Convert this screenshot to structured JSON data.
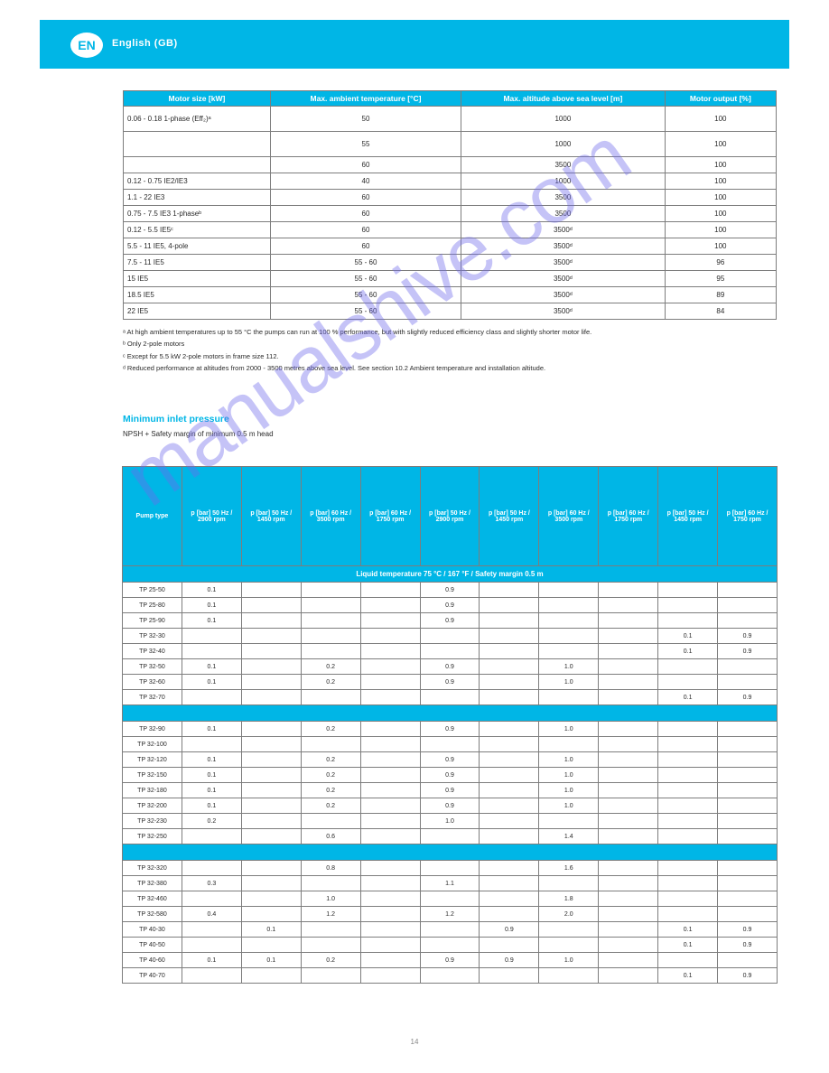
{
  "header": {
    "page_badge": "EN",
    "title": "English (GB)"
  },
  "table1": {
    "headers": [
      "Motor size [kW]",
      "Max. ambient temperature [°C]",
      "Max. altitude above sea level [m]",
      "Motor output [%]"
    ],
    "rows": [
      [
        "0.06 - 0.18 1-phase (Eff₂)ᵃ",
        "50",
        "1000",
        "100"
      ],
      [
        "",
        "55",
        "1000",
        "100"
      ],
      [
        "",
        "60",
        "3500",
        "100"
      ],
      [
        "0.12 - 0.75 IE2/IE3",
        "40",
        "1000",
        "100"
      ],
      [
        "1.1 - 22 IE3",
        "60",
        "3500",
        "100"
      ],
      [
        "0.75 - 7.5 IE3 1-phaseᵇ",
        "60",
        "3500",
        "100"
      ],
      [
        "0.12 - 5.5 IE5ᶜ",
        "60",
        "3500ᵈ",
        "100"
      ],
      [
        "5.5 - 11 IE5, 4-pole",
        "60",
        "3500ᵈ",
        "100"
      ],
      [
        "7.5 - 11 IE5",
        "55 - 60",
        "3500ᵈ",
        "96"
      ],
      [
        "15 IE5",
        "55 - 60",
        "3500ᵈ",
        "95"
      ],
      [
        "18.5 IE5",
        "55 - 60",
        "3500ᵈ",
        "89"
      ],
      [
        "22 IE5",
        "55 - 60",
        "3500ᵈ",
        "84"
      ]
    ]
  },
  "footnotes": [
    "ᵃ At high ambient temperatures up to 55 °C the pumps can run at 100 % performance, but with slightly reduced efficiency class and slightly shorter motor life.",
    "ᵇ Only 2-pole motors",
    "ᶜ Except for 5.5 kW 2-pole motors in frame size 112.",
    "ᵈ Reduced performance at altitudes from 2000 - 3500 metres above sea level. See section 10.2 Ambient temperature and installation altitude."
  ],
  "section": {
    "title": "Minimum inlet pressure",
    "sub": "NPSH + Safety margin of minimum 0.5 m head"
  },
  "table2": {
    "head": [
      "Pump type",
      "p [bar] 50 Hz / 2900 rpm",
      "p [bar] 50 Hz / 1450 rpm",
      "p [bar] 60 Hz / 3500 rpm",
      "p [bar] 60 Hz / 1750 rpm",
      "p [bar] 50 Hz / 2900 rpm",
      "p [bar] 50 Hz / 1450 rpm",
      "p [bar] 60 Hz / 3500 rpm",
      "p [bar] 60 Hz / 1750 rpm",
      "p [bar] 50 Hz / 1450 rpm",
      "p [bar] 60 Hz / 1750 rpm"
    ],
    "sections": [
      {
        "label": "Liquid temperature 75 °C / 167 °F / Safety margin 0.5 m",
        "rows": [
          [
            "TP 25-50",
            "0.1",
            "",
            "",
            "",
            "0.9",
            "",
            "",
            "",
            "",
            ""
          ],
          [
            "TP 25-80",
            "0.1",
            "",
            "",
            "",
            "0.9",
            "",
            "",
            "",
            "",
            ""
          ],
          [
            "TP 25-90",
            "0.1",
            "",
            "",
            "",
            "0.9",
            "",
            "",
            "",
            "",
            ""
          ],
          [
            "TP 32-30",
            "",
            "",
            "",
            "",
            "",
            "",
            "",
            "",
            "0.1",
            "0.9"
          ],
          [
            "TP 32-40",
            "",
            "",
            "",
            "",
            "",
            "",
            "",
            "",
            "0.1",
            "0.9"
          ],
          [
            "TP 32-50",
            "0.1",
            "",
            "0.2",
            "",
            "0.9",
            "",
            "1.0",
            "",
            "",
            ""
          ],
          [
            "TP 32-60",
            "0.1",
            "",
            "0.2",
            "",
            "0.9",
            "",
            "1.0",
            "",
            "",
            ""
          ],
          [
            "TP 32-70",
            "",
            "",
            "",
            "",
            "",
            "",
            "",
            "",
            "0.1",
            "0.9"
          ]
        ]
      },
      {
        "label": "",
        "rows": [
          [
            "TP 32-90",
            "0.1",
            "",
            "0.2",
            "",
            "0.9",
            "",
            "1.0",
            "",
            "",
            ""
          ],
          [
            "TP 32-100",
            "",
            "",
            "",
            "",
            "",
            "",
            "",
            "",
            "",
            ""
          ],
          [
            "TP 32-120",
            "0.1",
            "",
            "0.2",
            "",
            "0.9",
            "",
            "1.0",
            "",
            "",
            ""
          ],
          [
            "TP 32-150",
            "0.1",
            "",
            "0.2",
            "",
            "0.9",
            "",
            "1.0",
            "",
            "",
            ""
          ],
          [
            "TP 32-180",
            "0.1",
            "",
            "0.2",
            "",
            "0.9",
            "",
            "1.0",
            "",
            "",
            ""
          ],
          [
            "TP 32-200",
            "0.1",
            "",
            "0.2",
            "",
            "0.9",
            "",
            "1.0",
            "",
            "",
            ""
          ],
          [
            "TP 32-230",
            "0.2",
            "",
            "",
            "",
            "1.0",
            "",
            "",
            "",
            "",
            ""
          ],
          [
            "TP 32-250",
            "",
            "",
            "0.6",
            "",
            "",
            "",
            "1.4",
            "",
            "",
            ""
          ]
        ]
      },
      {
        "label": "",
        "rows": [
          [
            "TP 32-320",
            "",
            "",
            "0.8",
            "",
            "",
            "",
            "1.6",
            "",
            "",
            ""
          ],
          [
            "TP 32-380",
            "0.3",
            "",
            "",
            "",
            "1.1",
            "",
            "",
            "",
            "",
            ""
          ],
          [
            "TP 32-460",
            "",
            "",
            "1.0",
            "",
            "",
            "",
            "1.8",
            "",
            "",
            ""
          ],
          [
            "TP 32-580",
            "0.4",
            "",
            "1.2",
            "",
            "1.2",
            "",
            "2.0",
            "",
            "",
            ""
          ],
          [
            "TP 40-30",
            "",
            "0.1",
            "",
            "",
            "",
            "0.9",
            "",
            "",
            "0.1",
            "0.9"
          ],
          [
            "TP 40-50",
            "",
            "",
            "",
            "",
            "",
            "",
            "",
            "",
            "0.1",
            "0.9"
          ],
          [
            "TP 40-60",
            "0.1",
            "0.1",
            "0.2",
            "",
            "0.9",
            "0.9",
            "1.0",
            "",
            "",
            ""
          ],
          [
            "TP 40-70",
            "",
            "",
            "",
            "",
            "",
            "",
            "",
            "",
            "0.1",
            "0.9"
          ]
        ]
      }
    ]
  },
  "watermark": "manualshive.com",
  "pagenum": "14"
}
